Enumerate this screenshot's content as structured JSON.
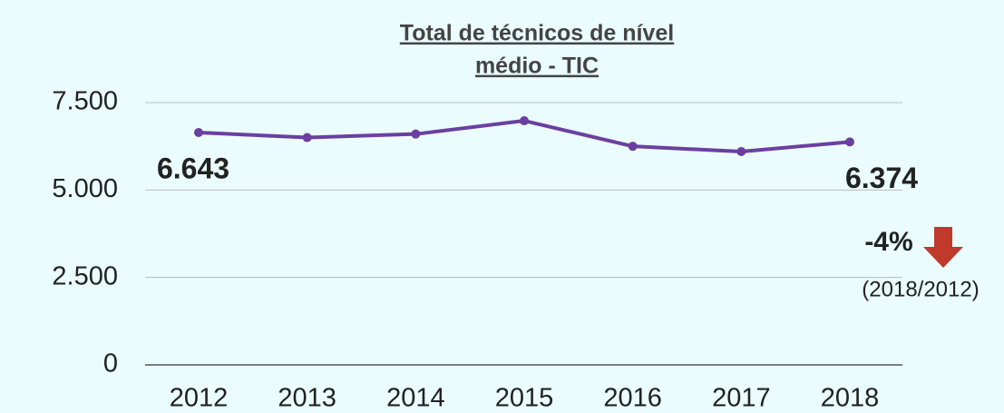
{
  "chart_data": {
    "type": "line",
    "title": [
      "Total de técnicos de nível",
      "médio - TIC"
    ],
    "categories": [
      "2012",
      "2013",
      "2014",
      "2015",
      "2016",
      "2017",
      "2018"
    ],
    "series": [
      {
        "name": "Total de técnicos de nível médio - TIC",
        "color": "#6b3fa0",
        "values": [
          6643,
          6500,
          6600,
          6980,
          6250,
          6100,
          6374
        ],
        "value_labels": [
          "6.643",
          null,
          null,
          null,
          null,
          null,
          "6.374"
        ]
      }
    ],
    "ylim": [
      0,
      7500
    ],
    "yticks": [
      0,
      {
        "value": 2500,
        "label": "2.500"
      },
      {
        "value": 5000,
        "label": "5.000"
      },
      {
        "value": 7500,
        "label": "7.500"
      }
    ],
    "grid": true,
    "annotations": [
      "-4%",
      "(2018/2012)"
    ]
  }
}
